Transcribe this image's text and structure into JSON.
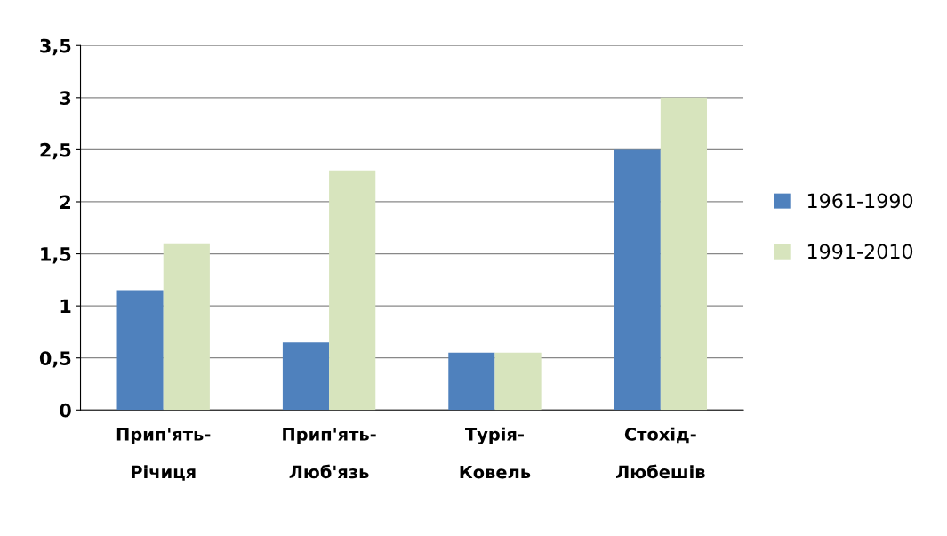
{
  "chart_data": {
    "type": "bar",
    "categories": [
      "Прип'ять-\nРічиця",
      "Прип'ять-\nЛюб'язь",
      "Турія-\nКовель",
      "Стохід-\nЛюбешів"
    ],
    "series": [
      {
        "name": "1961-1990",
        "color": "#4f81bd",
        "values": [
          1.15,
          0.65,
          0.55,
          2.5
        ]
      },
      {
        "name": "1991-2010",
        "color": "#d7e4bd",
        "values": [
          1.6,
          2.3,
          0.55,
          3.0
        ]
      }
    ],
    "ylim": [
      0,
      3.5
    ],
    "yticks": [
      0,
      {
        "value": 0.5,
        "label": "0,5"
      },
      1,
      {
        "value": 1.5,
        "label": "1,5"
      },
      2,
      {
        "value": 2.5,
        "label": "2,5"
      },
      3,
      {
        "value": 3.5,
        "label": "3,5"
      }
    ],
    "grid": "y",
    "legend": "right"
  }
}
